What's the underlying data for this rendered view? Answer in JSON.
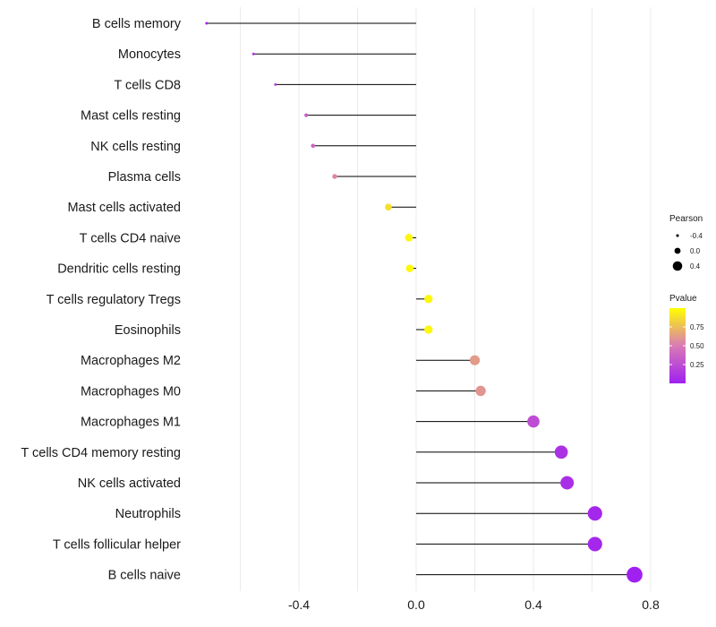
{
  "chart_data": {
    "type": "lollipop",
    "title": "",
    "xlabel": "",
    "ylabel": "",
    "xlim": [
      -0.6,
      0.82
    ],
    "x_ticks": [
      -0.4,
      0.0,
      0.4,
      0.8
    ],
    "x_tick_labels": [
      "-0.4",
      "0.0",
      "0.4",
      "0.8"
    ],
    "minor_gridlines": [
      -0.6,
      -0.2,
      0.2,
      0.6
    ],
    "categories": [
      "B cells memory",
      "Monocytes",
      "T cells CD8",
      "Mast cells resting",
      "NK cells resting",
      "Plasma cells",
      "Mast cells activated",
      "T cells CD4 naive",
      "Dendritic cells resting",
      "T cells regulatory  Tregs ",
      "Eosinophils",
      "Macrophages M2",
      "Macrophages M0",
      "Macrophages M1",
      "T cells CD4 memory resting",
      "NK cells activated",
      "Neutrophils",
      "T cells follicular helper",
      "B cells naive"
    ],
    "pearson": [
      -0.715,
      -0.555,
      -0.48,
      -0.375,
      -0.352,
      -0.278,
      -0.095,
      -0.025,
      -0.022,
      0.042,
      0.042,
      0.2,
      0.22,
      0.4,
      0.495,
      0.515,
      0.61,
      0.61,
      0.745
    ],
    "pvalue": [
      0.02,
      0.12,
      0.18,
      0.35,
      0.38,
      0.55,
      0.88,
      0.97,
      0.98,
      0.97,
      0.97,
      0.62,
      0.6,
      0.25,
      0.1,
      0.08,
      0.04,
      0.04,
      0.001
    ],
    "colors": {
      "low": "#a020f0",
      "mid": "#d97bb5",
      "high": "#ffff00",
      "segment": "#000000",
      "grid": "#ebebeb"
    },
    "legend": {
      "position": "right",
      "size_title": "Pearson",
      "size_values": [
        -0.4,
        0.0,
        0.4
      ],
      "size_labels": [
        "-0.4",
        "0.0",
        "0.4"
      ],
      "color_title": "Pvalue",
      "color_range": [
        0.0,
        1.0
      ],
      "color_ticks": [
        0.75,
        0.5,
        0.25
      ],
      "color_tick_labels": [
        "0.75",
        "0.50",
        "0.25"
      ]
    }
  }
}
